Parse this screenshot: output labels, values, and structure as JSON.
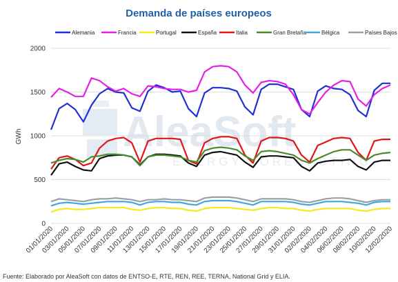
{
  "chart_data": {
    "type": "line",
    "title": "Demanda de países europeos",
    "ylabel": "GWh",
    "xlabel": "",
    "ylim": [
      0,
      2000
    ],
    "yticks": [
      0,
      500,
      1000,
      1500,
      2000
    ],
    "grid": true,
    "legend_position": "top",
    "x": [
      "01/01/2020",
      "02/01/2020",
      "03/01/2020",
      "04/01/2020",
      "05/01/2020",
      "06/01/2020",
      "07/01/2020",
      "08/01/2020",
      "09/01/2020",
      "10/01/2020",
      "11/01/2020",
      "12/01/2020",
      "13/01/2020",
      "14/01/2020",
      "15/01/2020",
      "16/01/2020",
      "17/01/2020",
      "18/01/2020",
      "19/01/2020",
      "20/01/2020",
      "21/01/2020",
      "22/01/2020",
      "23/01/2020",
      "24/01/2020",
      "25/01/2020",
      "26/01/2020",
      "27/01/2020",
      "28/01/2020",
      "29/01/2020",
      "30/01/2020",
      "31/01/2020",
      "01/02/2020",
      "02/02/2020",
      "03/02/2020",
      "04/02/2020",
      "05/02/2020",
      "06/02/2020",
      "07/02/2020",
      "08/02/2020",
      "09/02/2020",
      "10/02/2020",
      "11/02/2020",
      "12/02/2020"
    ],
    "x_tick_labels": [
      "01/01/2020",
      "03/01/2020",
      "05/01/2020",
      "07/01/2020",
      "09/01/2020",
      "11/01/2020",
      "13/01/2020",
      "15/01/2020",
      "17/01/2020",
      "19/01/2020",
      "21/01/2020",
      "23/01/2020",
      "25/01/2020",
      "27/01/2020",
      "29/01/2020",
      "31/01/2020",
      "02/02/2020",
      "04/02/2020",
      "06/02/2020",
      "08/02/2020",
      "10/02/2020",
      "12/02/2020"
    ],
    "series": [
      {
        "name": "Alemania",
        "color": "#1f2fd6",
        "values": [
          1070,
          1310,
          1370,
          1300,
          1160,
          1350,
          1480,
          1540,
          1500,
          1490,
          1320,
          1280,
          1510,
          1580,
          1550,
          1500,
          1510,
          1310,
          1220,
          1490,
          1550,
          1550,
          1540,
          1510,
          1330,
          1240,
          1530,
          1590,
          1590,
          1560,
          1530,
          1300,
          1220,
          1510,
          1570,
          1540,
          1530,
          1470,
          1290,
          1220,
          1520,
          1600,
          1600
        ]
      },
      {
        "name": "Francia",
        "color": "#e61ee6",
        "values": [
          1440,
          1540,
          1500,
          1450,
          1450,
          1660,
          1630,
          1560,
          1510,
          1540,
          1480,
          1450,
          1570,
          1560,
          1540,
          1530,
          1530,
          1500,
          1520,
          1730,
          1790,
          1800,
          1790,
          1730,
          1580,
          1490,
          1610,
          1630,
          1620,
          1590,
          1470,
          1300,
          1250,
          1380,
          1500,
          1580,
          1630,
          1620,
          1420,
          1340,
          1470,
          1540,
          1580
        ]
      },
      {
        "name": "Portugal",
        "color": "#f2ea1c",
        "values": [
          130,
          160,
          170,
          160,
          160,
          170,
          180,
          180,
          180,
          180,
          160,
          150,
          170,
          180,
          180,
          170,
          170,
          150,
          140,
          170,
          180,
          180,
          180,
          170,
          160,
          150,
          170,
          180,
          180,
          170,
          170,
          150,
          140,
          160,
          170,
          170,
          170,
          170,
          150,
          140,
          160,
          170,
          170
        ]
      },
      {
        "name": "España",
        "color": "#111111",
        "values": [
          550,
          680,
          700,
          650,
          610,
          600,
          740,
          770,
          780,
          780,
          760,
          670,
          760,
          790,
          790,
          780,
          770,
          690,
          650,
          780,
          810,
          820,
          800,
          780,
          700,
          640,
          760,
          770,
          770,
          760,
          750,
          650,
          600,
          690,
          710,
          720,
          720,
          730,
          650,
          610,
          700,
          720,
          720
        ]
      },
      {
        "name": "Italia",
        "color": "#e01515",
        "values": [
          620,
          750,
          770,
          730,
          660,
          690,
          860,
          940,
          970,
          980,
          920,
          700,
          940,
          970,
          970,
          970,
          960,
          720,
          680,
          920,
          970,
          990,
          990,
          970,
          780,
          690,
          940,
          980,
          980,
          970,
          940,
          780,
          700,
          890,
          930,
          970,
          980,
          970,
          810,
          720,
          940,
          960,
          960
        ]
      },
      {
        "name": "Gran Bretaña",
        "color": "#4a8a2c",
        "values": [
          690,
          720,
          740,
          730,
          700,
          760,
          770,
          790,
          790,
          780,
          760,
          660,
          760,
          780,
          780,
          770,
          760,
          720,
          700,
          830,
          860,
          870,
          860,
          840,
          770,
          720,
          820,
          830,
          820,
          800,
          780,
          720,
          690,
          740,
          780,
          820,
          840,
          840,
          780,
          720,
          780,
          800,
          810
        ]
      },
      {
        "name": "Bélgica",
        "color": "#3ea9d8",
        "values": [
          200,
          230,
          240,
          230,
          220,
          230,
          240,
          250,
          250,
          250,
          240,
          210,
          240,
          250,
          250,
          240,
          240,
          220,
          210,
          250,
          260,
          260,
          260,
          250,
          230,
          210,
          250,
          250,
          250,
          250,
          240,
          220,
          210,
          230,
          250,
          250,
          250,
          240,
          230,
          210,
          240,
          250,
          250
        ]
      },
      {
        "name": "Países Bajos",
        "color": "#9aa0a6",
        "values": [
          250,
          280,
          270,
          260,
          250,
          270,
          280,
          280,
          290,
          280,
          270,
          250,
          270,
          270,
          280,
          270,
          270,
          260,
          250,
          290,
          300,
          300,
          300,
          290,
          270,
          250,
          280,
          280,
          280,
          280,
          270,
          250,
          240,
          260,
          280,
          290,
          290,
          280,
          260,
          240,
          260,
          270,
          270
        ]
      }
    ]
  },
  "watermark": {
    "brand": "AleaSoft",
    "tagline": "ENERGY FORECASTING"
  },
  "source_note": "Fuente: Elaborado por AleaSoft con datos de ENTSO-E, RTE, REN, REE, TERNA, National Grid y ELIA."
}
